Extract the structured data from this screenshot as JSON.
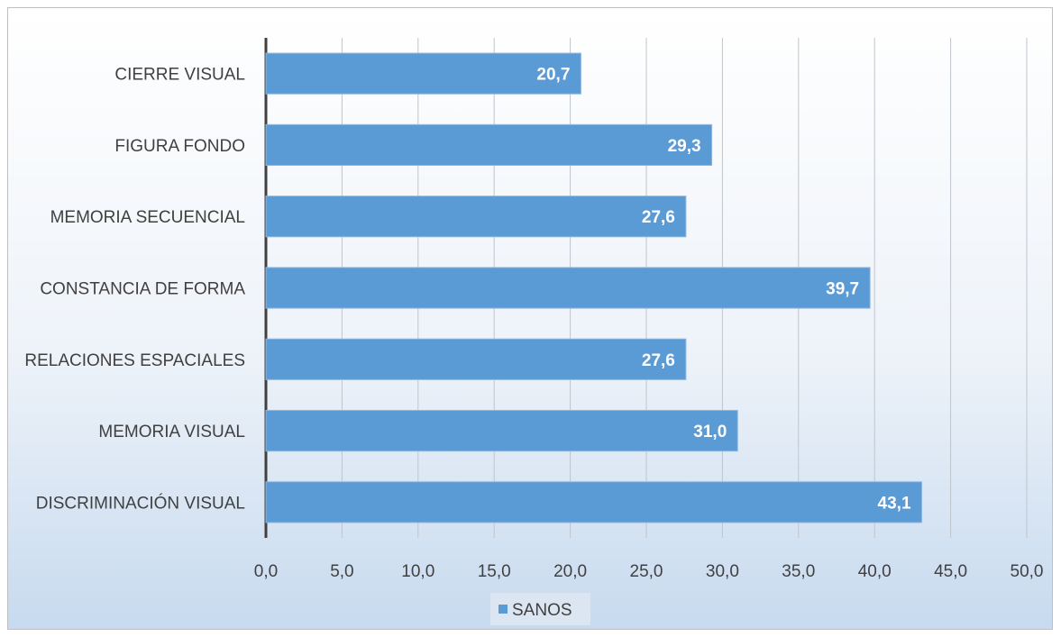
{
  "chart_data": {
    "type": "bar",
    "orientation": "horizontal",
    "categories": [
      "CIERRE VISUAL",
      "FIGURA FONDO",
      "MEMORIA SECUENCIAL",
      "CONSTANCIA DE FORMA",
      "RELACIONES ESPACIALES",
      "MEMORIA VISUAL",
      "DISCRIMINACIÓN VISUAL"
    ],
    "series": [
      {
        "name": "SANOS",
        "values": [
          20.7,
          29.3,
          27.6,
          39.7,
          27.6,
          31.0,
          43.1
        ],
        "labels": [
          "20,7",
          "29,3",
          "27,6",
          "39,7",
          "27,6",
          "31,0",
          "43,1"
        ],
        "color": "#5b9bd5"
      }
    ],
    "xlim": [
      0,
      50
    ],
    "ticks": [
      0,
      5,
      10,
      15,
      20,
      25,
      30,
      35,
      40,
      45,
      50
    ],
    "tick_labels": [
      "0,0",
      "5,0",
      "10,0",
      "15,0",
      "20,0",
      "25,0",
      "30,0",
      "35,0",
      "40,0",
      "45,0",
      "50,0"
    ],
    "grid": true,
    "legend": "bottom",
    "title": "",
    "xlabel": "",
    "ylabel": ""
  }
}
